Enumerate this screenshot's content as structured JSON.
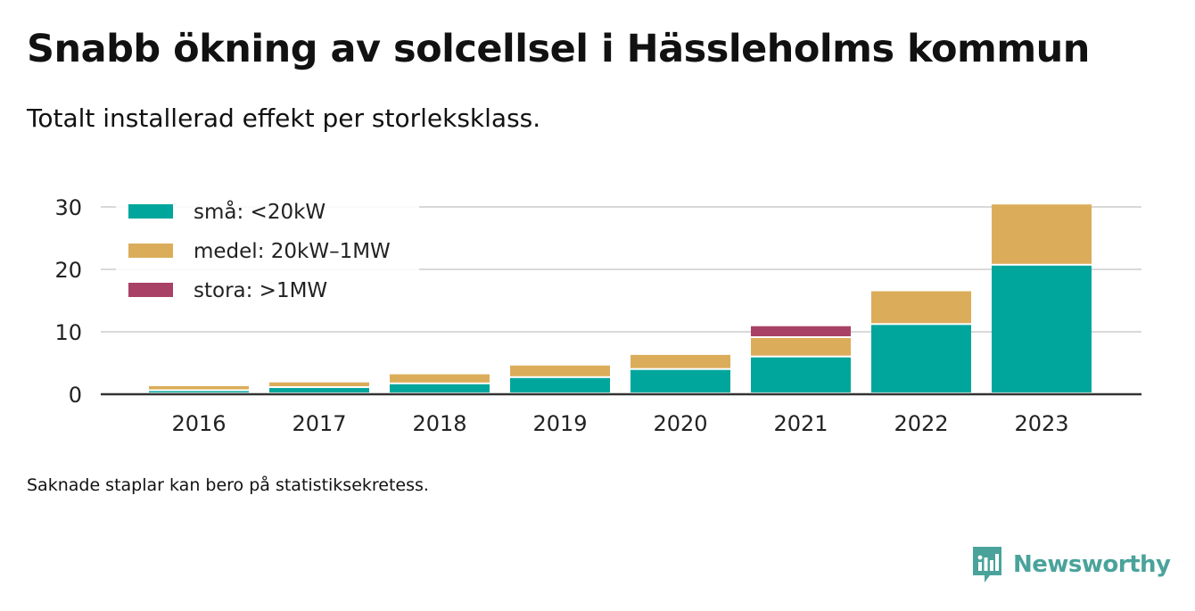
{
  "title": "Snabb ökning av solcellsel i Hässleholms kommun",
  "subtitle": "Totalt installerad effekt per storleksklass.",
  "footnote": "Saknade staplar kan bero på statistiksekretess.",
  "brand": {
    "name": "Newsworthy",
    "icon": "newsworthy-logo-icon",
    "color": "#4aa39b"
  },
  "chart_data": {
    "type": "bar",
    "stacked": true,
    "categories": [
      "2016",
      "2017",
      "2018",
      "2019",
      "2020",
      "2021",
      "2022",
      "2023"
    ],
    "series": [
      {
        "name": "små: <20kW",
        "color": "#00a69c",
        "values": [
          0.5,
          1.0,
          1.6,
          2.6,
          3.9,
          5.9,
          11.1,
          20.6
        ]
      },
      {
        "name": "medel: 20kW–1MW",
        "color": "#dbad5a",
        "values": [
          0.8,
          0.9,
          1.6,
          2.0,
          2.4,
          3.1,
          5.4,
          9.8
        ]
      },
      {
        "name": "stora: >1MW",
        "color": "#a94166",
        "values": [
          0,
          0,
          0,
          0,
          0,
          1.9,
          0,
          0
        ]
      }
    ],
    "yticks": [
      0,
      10,
      20,
      30
    ],
    "ylim": [
      0,
      31
    ],
    "grid": true,
    "legend": "top-left"
  }
}
